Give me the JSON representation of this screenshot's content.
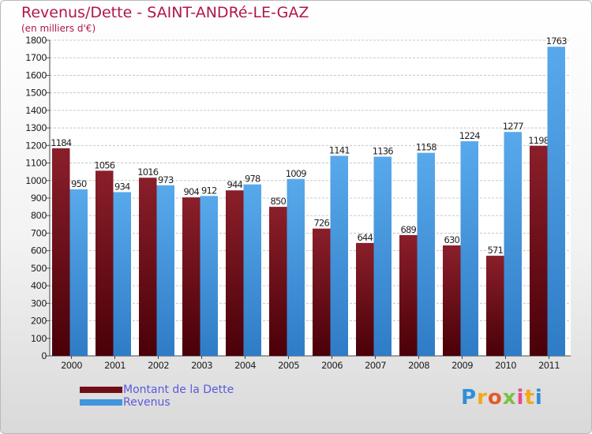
{
  "header": {
    "title": "Revenus/Dette - SAINT-ANDRé-LE-GAZ",
    "subtitle": "(en milliers d'€)"
  },
  "colors": {
    "title": "#b0174a",
    "legend_text": "#5a5adf",
    "dette": "#6e0f16",
    "revenus": "#3f95de"
  },
  "chart_data": {
    "type": "bar",
    "title": "Revenus/Dette - SAINT-ANDRé-LE-GAZ",
    "subtitle": "(en milliers d'€)",
    "categories": [
      "2000",
      "2001",
      "2002",
      "2003",
      "2004",
      "2005",
      "2006",
      "2007",
      "2008",
      "2009",
      "2010",
      "2011"
    ],
    "series": [
      {
        "name": "Montant de la Dette",
        "color": "#6e0f16",
        "values": [
          1184,
          1056,
          1016,
          904,
          944,
          850,
          726,
          644,
          689,
          630,
          571,
          1198
        ]
      },
      {
        "name": "Revenus",
        "color": "#3f95de",
        "values": [
          950,
          934,
          973,
          912,
          978,
          1009,
          1141,
          1136,
          1158,
          1224,
          1277,
          1763
        ]
      }
    ],
    "ylim": [
      0,
      1800
    ],
    "ytick_step": 100,
    "grid": true,
    "legend_position": "bottom-left",
    "data_labels": true
  },
  "legend": {
    "items": [
      {
        "label": "Montant de la Dette",
        "color": "#6e0f16"
      },
      {
        "label": "Revenus",
        "color": "#3f95de"
      }
    ]
  },
  "logo": {
    "text": "Proxiti",
    "letter_colors": [
      "#2e8fd8",
      "#f3a81b",
      "#e55a2a",
      "#7cc142",
      "#e64a8a",
      "#f3a81b",
      "#2e8fd8"
    ]
  }
}
